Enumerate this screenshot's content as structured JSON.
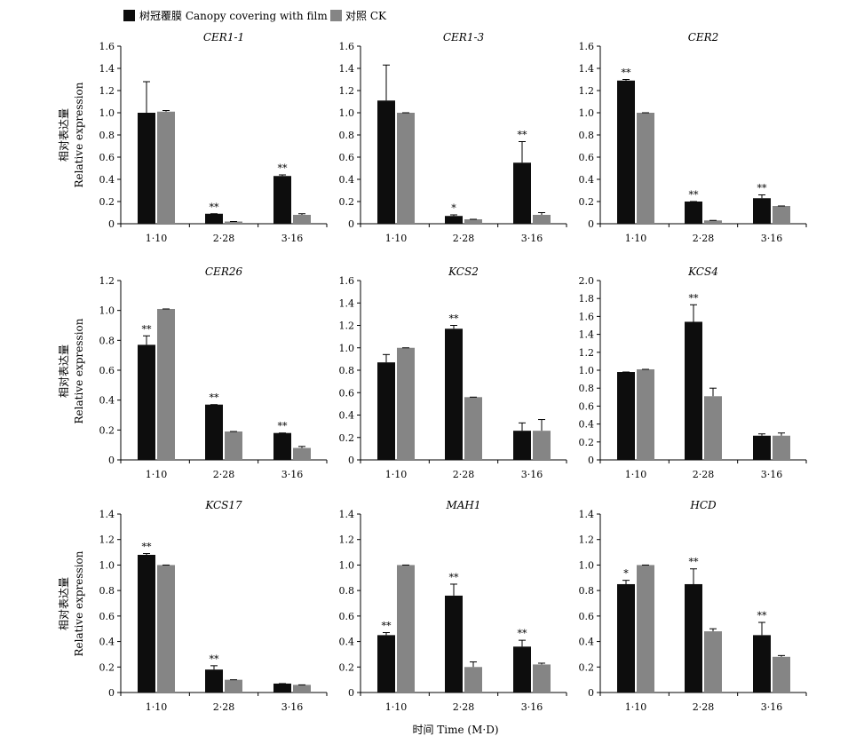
{
  "legend": {
    "film_label": "树冠覆膜 Canopy covering with film",
    "ck_label": "对照 CK",
    "film_color": "#0d0d0d",
    "ck_color": "#858585"
  },
  "y_axis_label_cn": "相对表达量",
  "y_axis_label_en": "Relative expression",
  "x_axis_title": "时间 Time (M·D)",
  "chart_data": [
    {
      "type": "bar",
      "title": "CER1-1",
      "categories": [
        "1·10",
        "2·28",
        "3·16"
      ],
      "ylim": [
        0,
        1.6
      ],
      "yticks": [
        "0",
        "0.2",
        "0.4",
        "0.6",
        "0.8",
        "1.0",
        "1.2",
        "1.4",
        "1.6"
      ],
      "series": [
        {
          "name": "树冠覆膜 Canopy covering with film",
          "values": [
            1.0,
            0.09,
            0.43
          ],
          "errors": [
            0.28,
            0.0,
            0.01
          ]
        },
        {
          "name": "对照 CK",
          "values": [
            1.01,
            0.02,
            0.08
          ],
          "errors": [
            0.01,
            0.0,
            0.01
          ]
        }
      ],
      "significance": [
        "",
        "**",
        "**"
      ]
    },
    {
      "type": "bar",
      "title": "CER1-3",
      "categories": [
        "1·10",
        "2·28",
        "3·16"
      ],
      "ylim": [
        0,
        1.6
      ],
      "yticks": [
        "0",
        "0.2",
        "0.4",
        "0.6",
        "0.8",
        "1.0",
        "1.2",
        "1.4",
        "1.6"
      ],
      "series": [
        {
          "name": "树冠覆膜 Canopy covering with film",
          "values": [
            1.11,
            0.07,
            0.55
          ],
          "errors": [
            0.32,
            0.01,
            0.19
          ]
        },
        {
          "name": "对照 CK",
          "values": [
            1.0,
            0.04,
            0.08
          ],
          "errors": [
            0.0,
            0.0,
            0.02
          ]
        }
      ],
      "significance": [
        "",
        "*",
        "**"
      ]
    },
    {
      "type": "bar",
      "title": "CER2",
      "categories": [
        "1·10",
        "2·28",
        "3·16"
      ],
      "ylim": [
        0,
        1.6
      ],
      "yticks": [
        "0",
        "0.2",
        "0.4",
        "0.6",
        "0.8",
        "1.0",
        "1.2",
        "1.4",
        "1.6"
      ],
      "series": [
        {
          "name": "树冠覆膜 Canopy covering with film",
          "values": [
            1.29,
            0.2,
            0.23
          ],
          "errors": [
            0.01,
            0.0,
            0.03
          ]
        },
        {
          "name": "对照 CK",
          "values": [
            1.0,
            0.03,
            0.16
          ],
          "errors": [
            0.0,
            0.0,
            0.0
          ]
        }
      ],
      "significance": [
        "**",
        "**",
        "**"
      ]
    },
    {
      "type": "bar",
      "title": "CER26",
      "categories": [
        "1·10",
        "2·28",
        "3·16"
      ],
      "ylim": [
        0,
        1.2
      ],
      "yticks": [
        "0",
        "0.2",
        "0.4",
        "0.6",
        "0.8",
        "1.0",
        "1.2"
      ],
      "series": [
        {
          "name": "树冠覆膜 Canopy covering with film",
          "values": [
            0.77,
            0.37,
            0.18
          ],
          "errors": [
            0.06,
            0.0,
            0.0
          ]
        },
        {
          "name": "对照 CK",
          "values": [
            1.01,
            0.19,
            0.08
          ],
          "errors": [
            0.0,
            0.0,
            0.01
          ]
        }
      ],
      "significance": [
        "**",
        "**",
        "**"
      ]
    },
    {
      "type": "bar",
      "title": "KCS2",
      "categories": [
        "1·10",
        "2·28",
        "3·16"
      ],
      "ylim": [
        0,
        1.6
      ],
      "yticks": [
        "0",
        "0.2",
        "0.4",
        "0.6",
        "0.8",
        "1.0",
        "1.2",
        "1.4",
        "1.6"
      ],
      "series": [
        {
          "name": "树冠覆膜 Canopy covering with film",
          "values": [
            0.87,
            1.17,
            0.26
          ],
          "errors": [
            0.07,
            0.03,
            0.07
          ]
        },
        {
          "name": "对照 CK",
          "values": [
            1.0,
            0.56,
            0.26
          ],
          "errors": [
            0.0,
            0.0,
            0.1
          ]
        }
      ],
      "significance": [
        "",
        "**",
        ""
      ]
    },
    {
      "type": "bar",
      "title": "KCS4",
      "categories": [
        "1·10",
        "2·28",
        "3·16"
      ],
      "ylim": [
        0,
        2.0
      ],
      "yticks": [
        "0",
        "0.2",
        "0.4",
        "0.6",
        "0.8",
        "1.0",
        "1.2",
        "1.4",
        "1.6",
        "1.8",
        "2.0"
      ],
      "series": [
        {
          "name": "树冠覆膜 Canopy covering with film",
          "values": [
            0.98,
            1.54,
            0.27
          ],
          "errors": [
            0.0,
            0.19,
            0.02
          ]
        },
        {
          "name": "对照 CK",
          "values": [
            1.01,
            0.71,
            0.27
          ],
          "errors": [
            0.0,
            0.09,
            0.03
          ]
        }
      ],
      "significance": [
        "",
        "**",
        ""
      ]
    },
    {
      "type": "bar",
      "title": "KCS17",
      "categories": [
        "1·10",
        "2·28",
        "3·16"
      ],
      "ylim": [
        0,
        1.4
      ],
      "yticks": [
        "0",
        "0.2",
        "0.4",
        "0.6",
        "0.8",
        "1.0",
        "1.2",
        "1.4"
      ],
      "series": [
        {
          "name": "树冠覆膜 Canopy covering with film",
          "values": [
            1.08,
            0.18,
            0.07
          ],
          "errors": [
            0.01,
            0.03,
            0.0
          ]
        },
        {
          "name": "对照 CK",
          "values": [
            1.0,
            0.1,
            0.06
          ],
          "errors": [
            0.0,
            0.0,
            0.0
          ]
        }
      ],
      "significance": [
        "**",
        "**",
        ""
      ]
    },
    {
      "type": "bar",
      "title": "MAH1",
      "categories": [
        "1·10",
        "2·28",
        "3·16"
      ],
      "ylim": [
        0,
        1.4
      ],
      "yticks": [
        "0",
        "0.2",
        "0.4",
        "0.6",
        "0.8",
        "1.0",
        "1.2",
        "1.4"
      ],
      "series": [
        {
          "name": "树冠覆膜 Canopy covering with film",
          "values": [
            0.45,
            0.76,
            0.36
          ],
          "errors": [
            0.02,
            0.09,
            0.05
          ]
        },
        {
          "name": "对照 CK",
          "values": [
            1.0,
            0.2,
            0.22
          ],
          "errors": [
            0.0,
            0.04,
            0.01
          ]
        }
      ],
      "significance": [
        "**",
        "**",
        "**"
      ]
    },
    {
      "type": "bar",
      "title": "HCD",
      "categories": [
        "1·10",
        "2·28",
        "3·16"
      ],
      "ylim": [
        0,
        1.4
      ],
      "yticks": [
        "0",
        "0.2",
        "0.4",
        "0.6",
        "0.8",
        "1.0",
        "1.2",
        "1.4"
      ],
      "series": [
        {
          "name": "树冠覆膜 Canopy covering with film",
          "values": [
            0.85,
            0.85,
            0.45
          ],
          "errors": [
            0.03,
            0.12,
            0.1
          ]
        },
        {
          "name": "对照 CK",
          "values": [
            1.0,
            0.48,
            0.28
          ],
          "errors": [
            0.0,
            0.02,
            0.01
          ]
        }
      ],
      "significance": [
        "*",
        "**",
        "**"
      ]
    }
  ]
}
